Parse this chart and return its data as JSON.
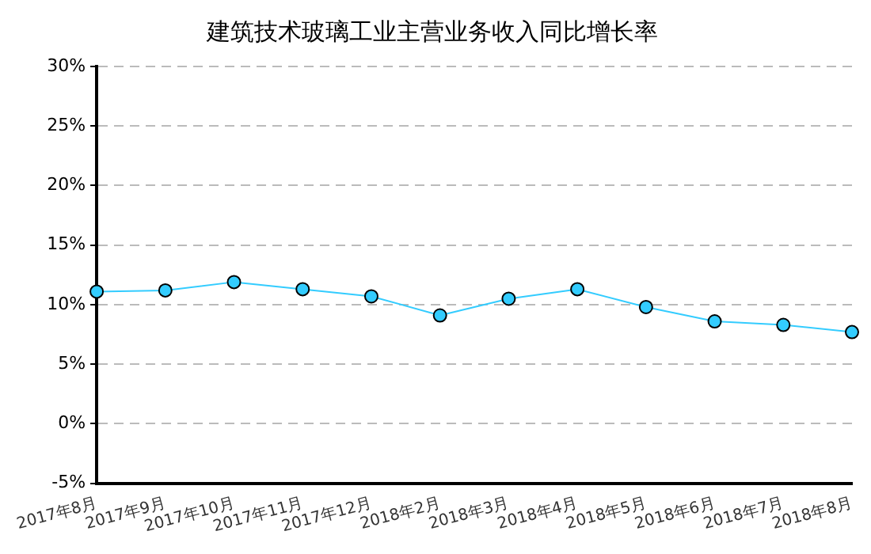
{
  "chart_data": {
    "type": "line",
    "title": "建筑技术玻璃工业主营业务收入同比增长率",
    "categories": [
      "2017年8月",
      "2017年9月",
      "2017年10月",
      "2017年11月",
      "2017年12月",
      "2018年2月",
      "2018年3月",
      "2018年4月",
      "2018年5月",
      "2018年6月",
      "2018年7月",
      "2018年8月"
    ],
    "series": [
      {
        "color": "#33ccff",
        "values": [
          11.1,
          11.2,
          11.9,
          11.3,
          10.7,
          9.1,
          10.5,
          11.3,
          9.8,
          8.6,
          8.3,
          7.7
        ]
      }
    ],
    "ylim": [
      -5,
      30
    ],
    "yticks": [
      {
        "value": -5,
        "label": "-5%"
      },
      {
        "value": 0,
        "label": "0%"
      },
      {
        "value": 5,
        "label": "5%"
      },
      {
        "value": 10,
        "label": "10%"
      },
      {
        "value": 15,
        "label": "15%"
      },
      {
        "value": 20,
        "label": "20%"
      },
      {
        "value": 25,
        "label": "25%"
      },
      {
        "value": 30,
        "label": "30%"
      }
    ],
    "grid": "y",
    "marker": "circle",
    "line_style": "solid",
    "legend": false
  }
}
